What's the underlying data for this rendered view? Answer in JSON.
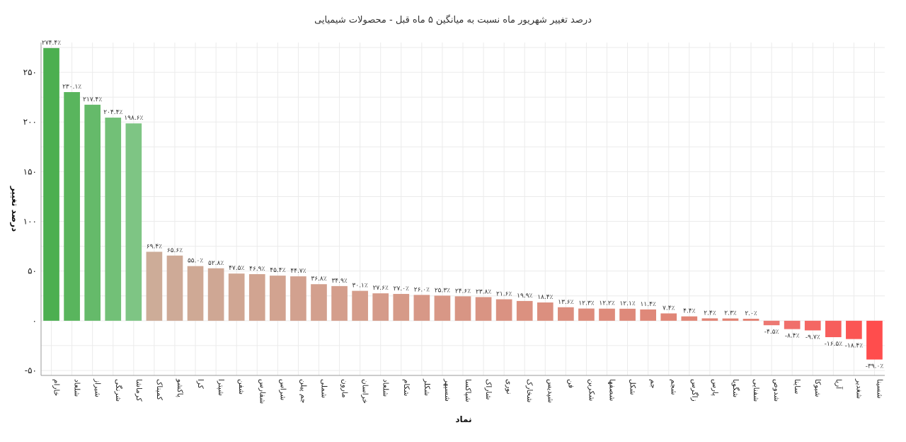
{
  "chart_data": {
    "type": "bar",
    "title": "درصد تغییر شهریور ماه نسبت به میانگین ۵ ماه قبل - محصولات شیمیایی",
    "xlabel": "نماد",
    "ylabel": "درصد تغییر",
    "ylim": [
      -55,
      280
    ],
    "y_ticks": [
      -50,
      0,
      50,
      100,
      150,
      200,
      250
    ],
    "y_tick_labels": [
      "-۵۰",
      "۰",
      "۵۰",
      "۱۰۰",
      "۱۵۰",
      "۲۰۰",
      "۲۵۰"
    ],
    "grid": true,
    "categories": [
      "خارام",
      "شلعاد",
      "شیراز",
      "شرنگی",
      "کرماشا",
      "کمیناک",
      "پاکشو",
      "کرا",
      "شپترا",
      "شفن",
      "شفارس",
      "شراس",
      "جم پیلن",
      "شملی",
      "مارون",
      "خراسان",
      "شلعاد",
      "شکام",
      "شکلر",
      "شسپهر",
      "شپاکسا",
      "شاراک",
      "نوری",
      "شخارک",
      "شپدیس",
      "فن",
      "شکربن",
      "شصفها",
      "شکل",
      "جم",
      "شجم",
      "زاگرس",
      "پارس",
      "شگویا",
      "شفنایی",
      "شدوص",
      "ساینا",
      "شیوکا",
      "آریا",
      "شغدیر",
      "شسینا"
    ],
    "values": [
      274.4,
      230.1,
      217.4,
      204.4,
      198.6,
      69.4,
      65.6,
      55.0,
      52.8,
      47.5,
      46.9,
      45.4,
      44.7,
      36.8,
      34.9,
      30.1,
      27.6,
      27.0,
      26.0,
      25.3,
      24.6,
      23.8,
      21.6,
      19.9,
      18.4,
      13.6,
      12.3,
      12.2,
      12.1,
      11.4,
      7.4,
      4.4,
      2.4,
      2.3,
      2.0,
      -4.5,
      -8.4,
      -9.7,
      -16.5,
      -18.4,
      -39.0
    ],
    "data_labels": [
      "۲۷۴.۴٪",
      "۲۳۰.۱٪",
      "۲۱۷.۴٪",
      "۲۰۴.۴٪",
      "۱۹۸.۶٪",
      "۶۹.۴٪",
      "۶۵.۶٪",
      "۵۵.۰٪",
      "۵۲.۸٪",
      "۴۷.۵٪",
      "۴۶.۹٪",
      "۴۵.۴٪",
      "۴۴.۷٪",
      "۳۶.۸٪",
      "۳۴.۹٪",
      "۳۰.۱٪",
      "۲۷.۶٪",
      "۲۷.۰٪",
      "۲۶.۰٪",
      "۲۵.۳٪",
      "۲۴.۶٪",
      "۲۳.۸٪",
      "۲۱.۶٪",
      "۱۹.۹٪",
      "۱۸.۴٪",
      "۱۳.۶٪",
      "۱۲.۳٪",
      "۱۲.۲٪",
      "۱۲.۱٪",
      "۱۱.۴٪",
      "۷.۴٪",
      "۴.۴٪",
      "۲.۴٪",
      "۲.۳٪",
      "۲.۰٪",
      "-۴.۵٪",
      "-۸.۴٪",
      "-۹.۷٪",
      "-۱۶.۵٪",
      "-۱۸.۴٪",
      "-۳۹.۰٪"
    ],
    "colors": {
      "positive_high": "#4caf50",
      "positive_fade": "#7ec584",
      "mid_start": "#cdac98",
      "mid_end": "#e38072",
      "negative_start": "#ec7872",
      "negative_end": "#ff4d4d",
      "background": "#ffffff",
      "grid": "#ebebeb"
    }
  }
}
